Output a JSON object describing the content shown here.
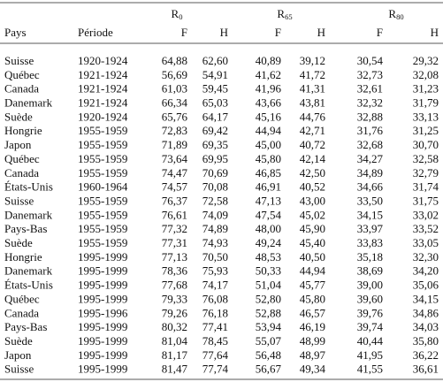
{
  "table": {
    "groups": [
      {
        "symbol": "R",
        "sub": "0"
      },
      {
        "symbol": "R",
        "sub": "65"
      },
      {
        "symbol": "R",
        "sub": "80"
      }
    ],
    "columns": [
      "Pays",
      "Période",
      "F",
      "H",
      "F",
      "H",
      "F",
      "H"
    ],
    "rows": [
      [
        "Suisse",
        "1920-1924",
        "64,88",
        "62,60",
        "40,89",
        "39,12",
        "30,54",
        "29,32"
      ],
      [
        "Québec",
        "1921-1924",
        "56,69",
        "54,91",
        "41,62",
        "41,72",
        "32,73",
        "32,08"
      ],
      [
        "Canada",
        "1921-1924",
        "61,03",
        "59,45",
        "41,96",
        "41,31",
        "32,61",
        "31,23"
      ],
      [
        "Danemark",
        "1921-1924",
        "66,34",
        "65,03",
        "43,66",
        "43,81",
        "32,32",
        "31,79"
      ],
      [
        "Suède",
        "1920-1924",
        "65,76",
        "64,17",
        "45,16",
        "44,76",
        "32,88",
        "33,13"
      ],
      [
        "Hongrie",
        "1955-1959",
        "72,83",
        "69,42",
        "44,94",
        "42,71",
        "31,76",
        "31,25"
      ],
      [
        "Japon",
        "1955-1959",
        "71,89",
        "69,35",
        "45,00",
        "40,72",
        "32,68",
        "30,70"
      ],
      [
        "Québec",
        "1955-1959",
        "73,64",
        "69,95",
        "45,80",
        "42,14",
        "34,27",
        "32,58"
      ],
      [
        "Canada",
        "1955-1959",
        "74,47",
        "70,69",
        "46,85",
        "42,50",
        "34,89",
        "32,79"
      ],
      [
        "États-Unis",
        "1960-1964",
        "74,57",
        "70,08",
        "46,91",
        "40,52",
        "34,66",
        "31,74"
      ],
      [
        "Suisse",
        "1955-1959",
        "76,37",
        "72,58",
        "47,13",
        "43,00",
        "33,50",
        "31,75"
      ],
      [
        "Danemark",
        "1955-1959",
        "76,61",
        "74,09",
        "47,54",
        "45,02",
        "34,15",
        "33,02"
      ],
      [
        "Pays-Bas",
        "1955-1959",
        "77,32",
        "74,89",
        "48,00",
        "45,90",
        "33,97",
        "33,52"
      ],
      [
        "Suède",
        "1955-1959",
        "77,31",
        "74,93",
        "49,24",
        "45,40",
        "33,83",
        "33,05"
      ],
      [
        "Hongrie",
        "1995-1999",
        "77,13",
        "70,50",
        "48,53",
        "40,50",
        "35,18",
        "32,30"
      ],
      [
        "Danemark",
        "1995-1999",
        "78,36",
        "75,93",
        "50,33",
        "44,94",
        "38,69",
        "34,20"
      ],
      [
        "États-Unis",
        "1995-1999",
        "77,68",
        "74,17",
        "51,04",
        "45,77",
        "39,00",
        "35,06"
      ],
      [
        "Québec",
        "1995-1999",
        "79,33",
        "76,08",
        "52,80",
        "45,80",
        "39,60",
        "34,15"
      ],
      [
        "Canada",
        "1995-1996",
        "79,26",
        "76,18",
        "52,88",
        "46,57",
        "39,76",
        "34,86"
      ],
      [
        "Pays-Bas",
        "1995-1999",
        "80,32",
        "77,41",
        "53,94",
        "46,19",
        "39,74",
        "34,03"
      ],
      [
        "Suède",
        "1995-1999",
        "81,04",
        "78,45",
        "55,07",
        "48,99",
        "40,44",
        "35,80"
      ],
      [
        "Japon",
        "1995-1999",
        "81,17",
        "77,64",
        "56,48",
        "48,97",
        "41,95",
        "36,22"
      ],
      [
        "Suisse",
        "1995-1999",
        "81,47",
        "77,74",
        "56,67",
        "49,34",
        "41,55",
        "36,61"
      ]
    ]
  }
}
